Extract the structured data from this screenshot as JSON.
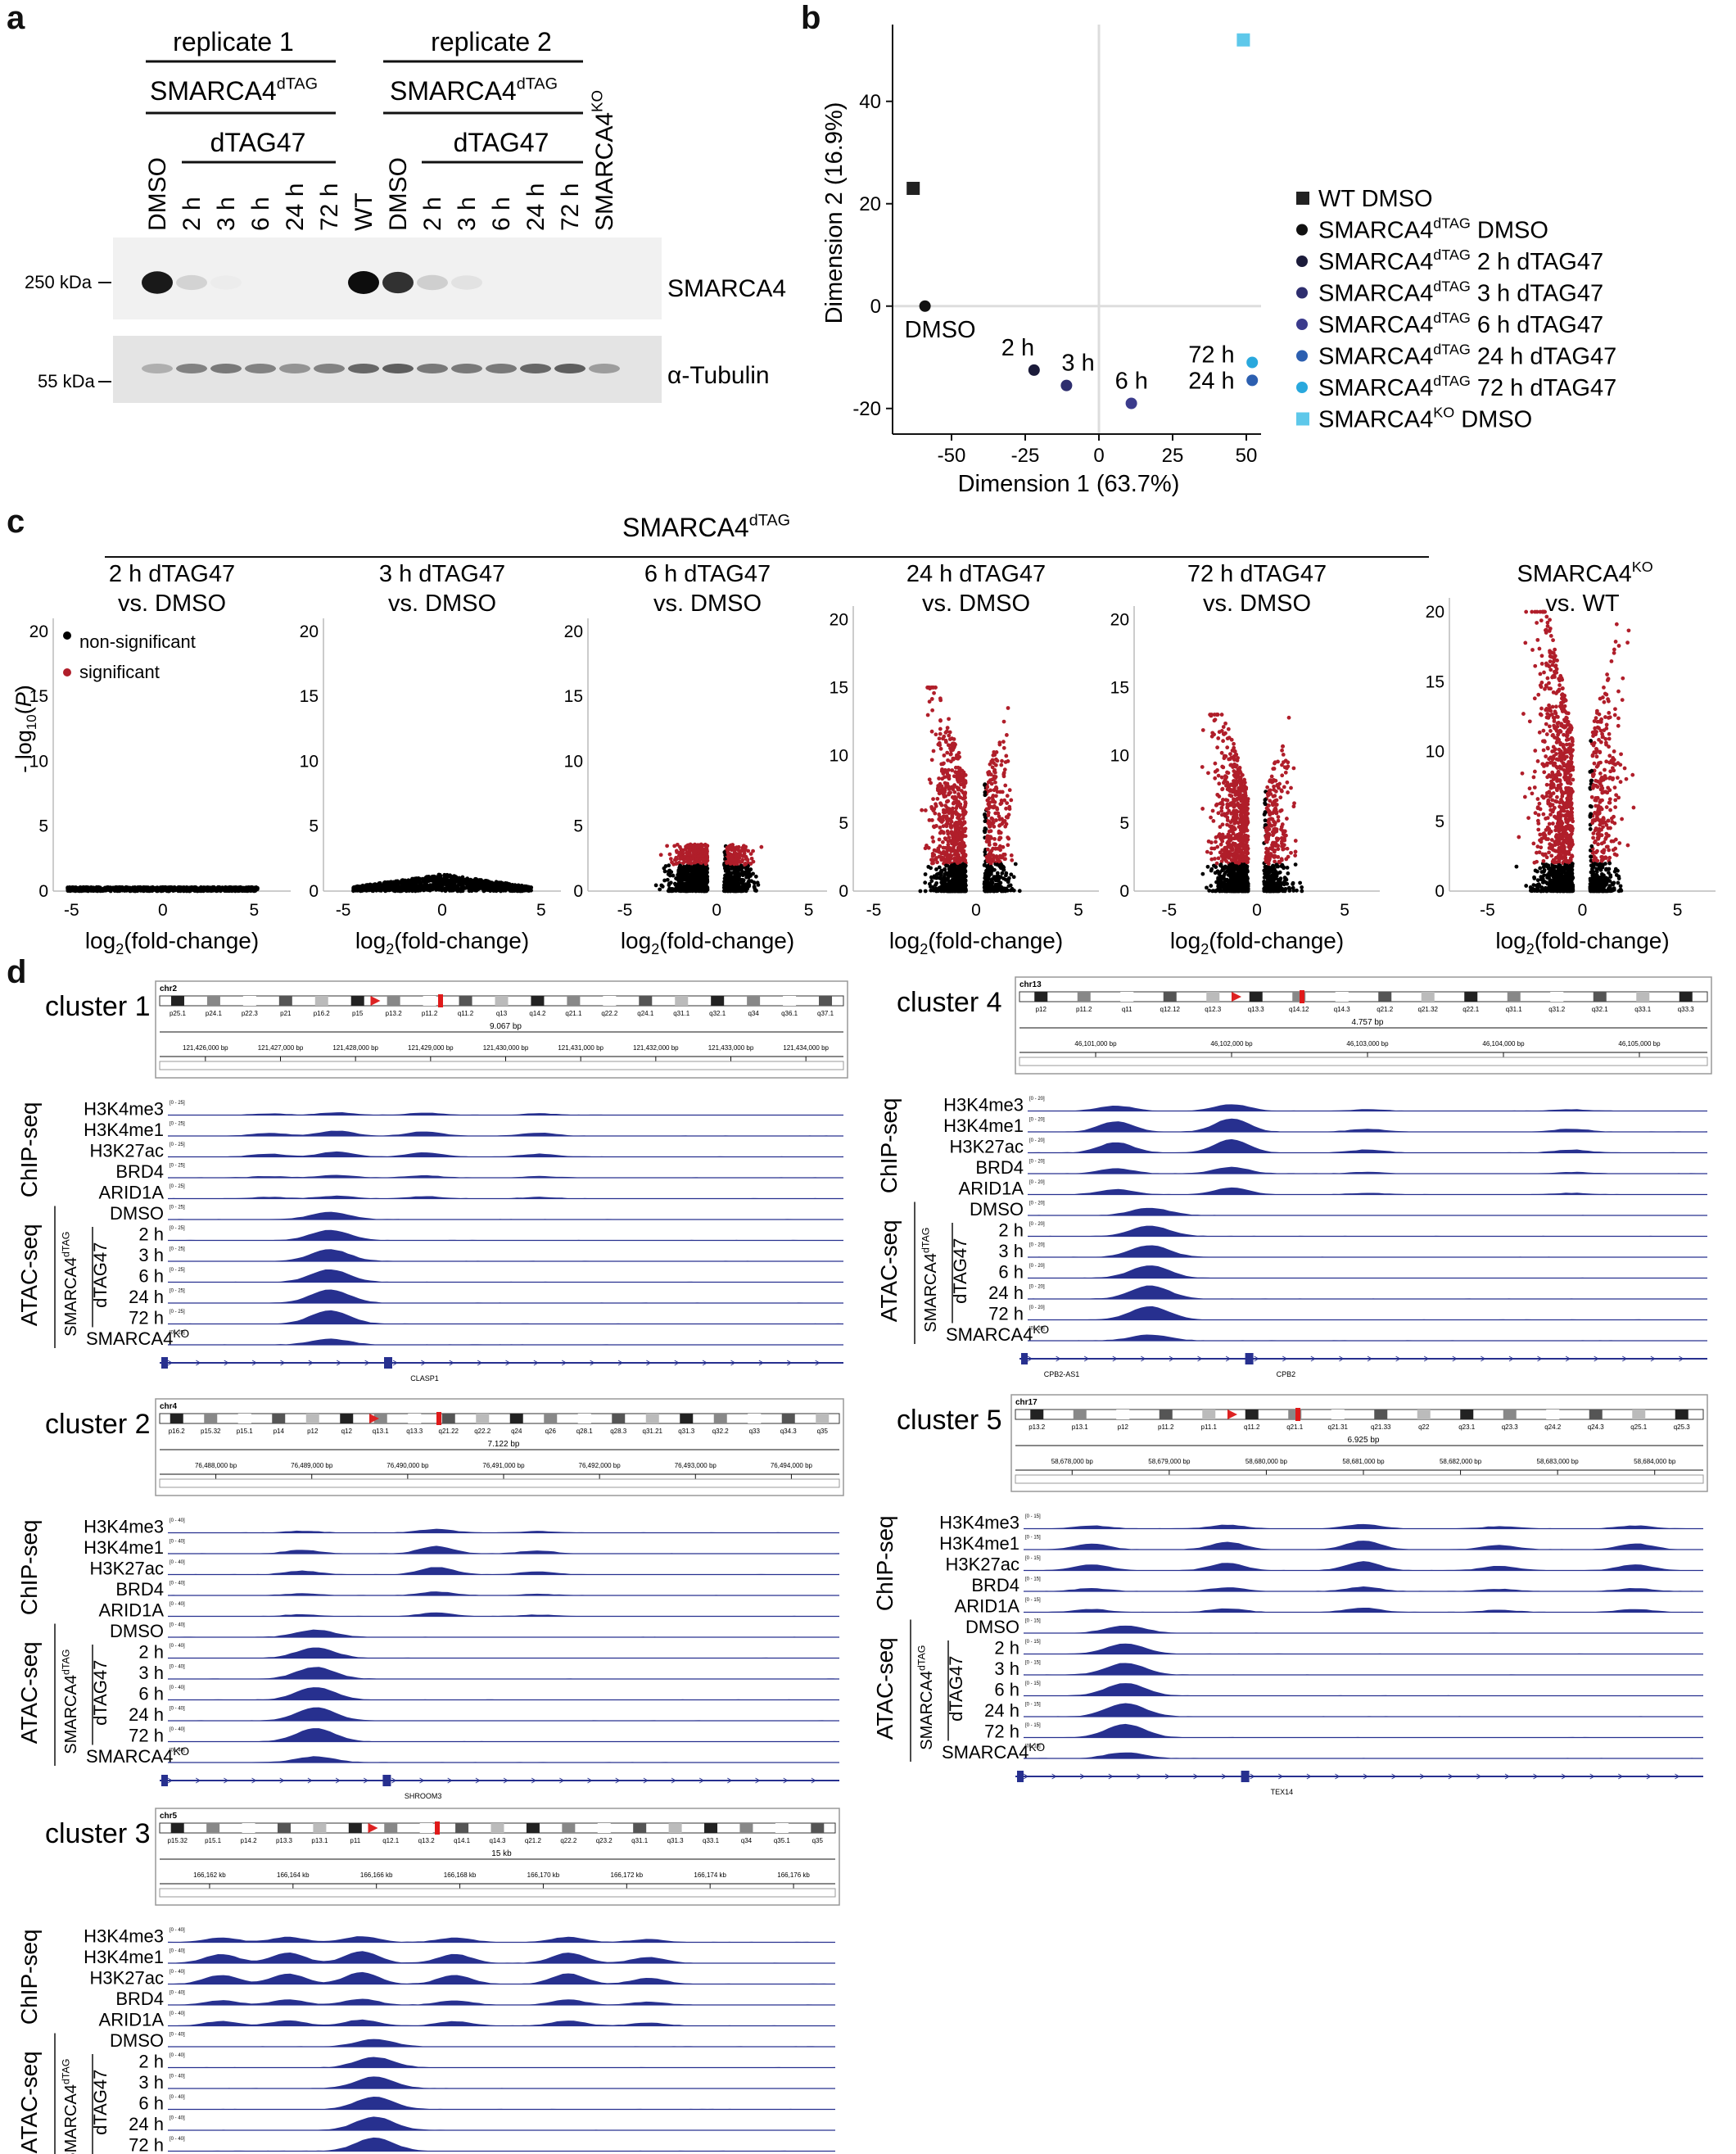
{
  "panels": {
    "a": "a",
    "b": "b",
    "c": "c",
    "d": "d"
  },
  "blot": {
    "replicate1": "replicate 1",
    "replicate2": "replicate 2",
    "genotype": "SMARCA4",
    "tag_sup": "dTAG",
    "treatment": "dTAG47",
    "ko_label": "SMARCA4",
    "ko_sup": "KO",
    "lanes": [
      "DMSO",
      "2 h",
      "3 h",
      "6 h",
      "24 h",
      "72 h",
      "WT",
      "DMSO",
      "2 h",
      "3 h",
      "6 h",
      "24 h",
      "72 h",
      "SMARCA4KO"
    ],
    "mw_top": "250 kDa",
    "mw_bottom": "55 kDa",
    "band_top": "SMARCA4",
    "band_bottom": "α-Tubulin",
    "top_intensity": [
      0.95,
      0.18,
      0.08,
      0,
      0,
      0,
      1.0,
      0.85,
      0.2,
      0.12,
      0,
      0,
      0,
      0
    ],
    "bottom_intensity": [
      0.45,
      0.7,
      0.75,
      0.7,
      0.6,
      0.7,
      0.85,
      0.9,
      0.75,
      0.75,
      0.75,
      0.85,
      0.9,
      0.55
    ]
  },
  "chart_data": [
    {
      "type": "scatter",
      "title": "",
      "xlabel": "Dimension 1 (63.7%)",
      "ylabel": "Dimension 2 (16.9%)",
      "xlim": [
        -70,
        55
      ],
      "ylim": [
        -25,
        55
      ],
      "xticks": [
        -50,
        -25,
        0,
        25,
        50
      ],
      "yticks": [
        -20,
        0,
        20,
        40
      ],
      "points": [
        {
          "name": "WT DMSO",
          "x": -63,
          "y": 23,
          "color": "#222222",
          "shape": "square",
          "label": ""
        },
        {
          "name": "SMARCA4dTAG DMSO",
          "x": -59,
          "y": 0,
          "color": "#111111",
          "shape": "circle",
          "label": "DMSO"
        },
        {
          "name": "SMARCA4dTAG 2 h dTAG47",
          "x": -22,
          "y": -12.5,
          "color": "#1b1b3a",
          "shape": "circle",
          "label": "2 h"
        },
        {
          "name": "SMARCA4dTAG 3 h dTAG47",
          "x": -11,
          "y": -15.5,
          "color": "#2e2e6e",
          "shape": "circle",
          "label": "3 h"
        },
        {
          "name": "SMARCA4dTAG 6 h dTAG47",
          "x": 11,
          "y": -19,
          "color": "#3b3b8c",
          "shape": "circle",
          "label": "6 h"
        },
        {
          "name": "SMARCA4dTAG 24 h dTAG47",
          "x": 52,
          "y": -14.5,
          "color": "#2c5fb0",
          "shape": "circle",
          "label": "24 h"
        },
        {
          "name": "SMARCA4dTAG 72 h dTAG47",
          "x": 52,
          "y": -11,
          "color": "#29a8dd",
          "shape": "circle",
          "label": "72 h"
        },
        {
          "name": "SMARCA4KO DMSO",
          "x": 49,
          "y": 52,
          "color": "#5ec8ea",
          "shape": "square",
          "label": ""
        }
      ],
      "legend": [
        {
          "text": "WT DMSO",
          "base": "",
          "sup": "",
          "rest": "WT DMSO"
        },
        {
          "base": "SMARCA4",
          "sup": "dTAG",
          "rest": " DMSO"
        },
        {
          "base": "SMARCA4",
          "sup": "dTAG",
          "rest": " 2 h dTAG47"
        },
        {
          "base": "SMARCA4",
          "sup": "dTAG",
          "rest": " 3 h dTAG47"
        },
        {
          "base": "SMARCA4",
          "sup": "dTAG",
          "rest": " 6 h dTAG47"
        },
        {
          "base": "SMARCA4",
          "sup": "dTAG",
          "rest": " 24 h dTAG47"
        },
        {
          "base": "SMARCA4",
          "sup": "dTAG",
          "rest": " 72 h dTAG47"
        },
        {
          "base": "SMARCA4",
          "sup": "KO",
          "rest": " DMSO"
        }
      ]
    },
    {
      "type": "scatter",
      "subtype": "volcano",
      "group_title": "SMARCA4",
      "group_sup": "dTAG",
      "ylabel": "- log10(P)",
      "xlabel": "log2(fold-change)",
      "legend": [
        "non-significant",
        "significant"
      ],
      "colors": {
        "non_significant": "#000000",
        "significant": "#b01e2a"
      },
      "panels": [
        {
          "title1": "2 h dTAG47",
          "title2": "vs. DMSO",
          "xlim": [
            -6,
            7
          ],
          "ylim": [
            0,
            21
          ],
          "yticks": [
            0,
            5,
            10,
            15,
            20
          ],
          "xticks": [
            -5,
            0,
            5
          ],
          "max_y": 0.3,
          "sig_threshold": null,
          "spread": 5.5
        },
        {
          "title1": "3 h dTAG47",
          "title2": "vs. DMSO",
          "xlim": [
            -6,
            6
          ],
          "ylim": [
            0,
            21
          ],
          "yticks": [
            0,
            5,
            10,
            15,
            20
          ],
          "xticks": [
            -5,
            0,
            5
          ],
          "max_y": 1.3,
          "sig_threshold": null,
          "spread": 5
        },
        {
          "title1": "6 h dTAG47",
          "title2": "vs. DMSO",
          "xlim": [
            -7,
            6
          ],
          "ylim": [
            0,
            21
          ],
          "yticks": [
            0,
            5,
            10,
            15,
            20
          ],
          "xticks": [
            -5,
            0,
            5
          ],
          "max_y": 3.6,
          "sig_threshold": 2,
          "spread": 6
        },
        {
          "title1": "24 h dTAG47",
          "title2": "vs. DMSO",
          "xlim": [
            -6,
            6
          ],
          "ylim": [
            0,
            21
          ],
          "yticks": [
            0,
            5,
            10,
            15,
            20
          ],
          "xticks": [
            -5,
            0,
            5
          ],
          "max_y": 15,
          "sig_threshold": 2,
          "spread": 5
        },
        {
          "title1": "72 h dTAG47",
          "title2": "vs. DMSO",
          "xlim": [
            -7,
            7
          ],
          "ylim": [
            0,
            21
          ],
          "yticks": [
            0,
            5,
            10,
            15,
            20
          ],
          "xticks": [
            -5,
            0,
            5
          ],
          "max_y": 13,
          "sig_threshold": 2,
          "spread": 6
        },
        {
          "title1": "SMARCA4",
          "title1_sup": "KO",
          "title2": "vs. WT",
          "xlim": [
            -7,
            7
          ],
          "ylim": [
            0,
            21
          ],
          "yticks": [
            0,
            5,
            10,
            15,
            20
          ],
          "xticks": [
            -5,
            0,
            5
          ],
          "max_y": 20,
          "sig_threshold": 2,
          "spread": 6
        }
      ]
    }
  ],
  "tracks": {
    "chipseq": "ChIP-seq",
    "atacseq": "ATAC-seq",
    "smarca4_tag": "SMARCA4",
    "tag_sup": "dTAG",
    "dtag47": "dTAG47",
    "ko_sup": "KO",
    "chip_rows": [
      "H3K4me3",
      "H3K4me1",
      "H3K27ac",
      "BRD4",
      "ARID1A"
    ],
    "atac_rows": [
      "DMSO",
      "2 h",
      "3 h",
      "6 h",
      "24 h",
      "72 h",
      "SMARCA4"
    ],
    "clusters": [
      {
        "name": "cluster 1",
        "chr": "chr2",
        "span": "9.067 bp",
        "range": "[0 - 25]",
        "gene": "CLASP1",
        "bands": [
          "p25.1",
          "p24.1",
          "p22.3",
          "p21",
          "p16.2",
          "p15",
          "p13.2",
          "p11.2",
          "q11.2",
          "q13",
          "q14.2",
          "q21.1",
          "q22.2",
          "q24.1",
          "q31.1",
          "q32.1",
          "q34",
          "q36.1",
          "q37.1"
        ],
        "coords": [
          "121,426,000 bp",
          "121,427,000 bp",
          "121,428,000 bp",
          "121,429,000 bp",
          "121,430,000 bp",
          "121,431,000 bp",
          "121,432,000 bp",
          "121,433,000 bp",
          "121,434,000 bp"
        ]
      },
      {
        "name": "cluster 2",
        "chr": "chr4",
        "span": "7.122 bp",
        "range": "[0 - 40]",
        "gene": "SHROOM3",
        "bands": [
          "p16.2",
          "p15.32",
          "p15.1",
          "p14",
          "p12",
          "q12",
          "q13.1",
          "q13.3",
          "q21.22",
          "q22.2",
          "q24",
          "q26",
          "q28.1",
          "q28.3",
          "q31.21",
          "q31.3",
          "q32.2",
          "q33",
          "q34.3",
          "q35"
        ],
        "coords": [
          "76,488,000 bp",
          "76,489,000 bp",
          "76,490,000 bp",
          "76,491,000 bp",
          "76,492,000 bp",
          "76,493,000 bp",
          "76,494,000 bp"
        ]
      },
      {
        "name": "cluster 3",
        "chr": "chr5",
        "span": "15 kb",
        "range": "[0 - 40]",
        "gene": "",
        "bands": [
          "p15.32",
          "p15.1",
          "p14.2",
          "p13.3",
          "p13.1",
          "p11",
          "q12.1",
          "q13.2",
          "q14.1",
          "q14.3",
          "q21.2",
          "q22.2",
          "q23.2",
          "q31.1",
          "q31.3",
          "q33.1",
          "q34",
          "q35.1",
          "q35"
        ],
        "coords": [
          "166,162 kb",
          "166,164 kb",
          "166,166 kb",
          "166,168 kb",
          "166,170 kb",
          "166,172 kb",
          "166,174 kb",
          "166,176 kb"
        ]
      },
      {
        "name": "cluster 4",
        "chr": "chr13",
        "span": "4.757 bp",
        "range": "[0 - 20]",
        "gene": "CPB2",
        "gene2": "CPB2-AS1",
        "bands": [
          "p12",
          "p11.2",
          "q11",
          "q12.12",
          "q12.3",
          "q13.3",
          "q14.12",
          "q14.3",
          "q21.2",
          "q21.32",
          "q22.1",
          "q31.1",
          "q31.2",
          "q32.1",
          "q33.1",
          "q33.3"
        ],
        "coords": [
          "46,101,000 bp",
          "46,102,000 bp",
          "46,103,000 bp",
          "46,104,000 bp",
          "46,105,000 bp"
        ]
      },
      {
        "name": "cluster 5",
        "chr": "chr17",
        "span": "6.925 bp",
        "range": "[0 - 15]",
        "gene": "TEX14",
        "bands": [
          "p13.2",
          "p13.1",
          "p12",
          "p11.2",
          "p11.1",
          "q11.2",
          "q21.1",
          "q21.31",
          "q21.33",
          "q22",
          "q23.1",
          "q23.3",
          "q24.2",
          "q24.3",
          "q25.1",
          "q25.3"
        ],
        "coords": [
          "58,678,000 bp",
          "58,679,000 bp",
          "58,680,000 bp",
          "58,681,000 bp",
          "58,682,000 bp",
          "58,683,000 bp",
          "58,684,000 bp"
        ]
      }
    ]
  }
}
